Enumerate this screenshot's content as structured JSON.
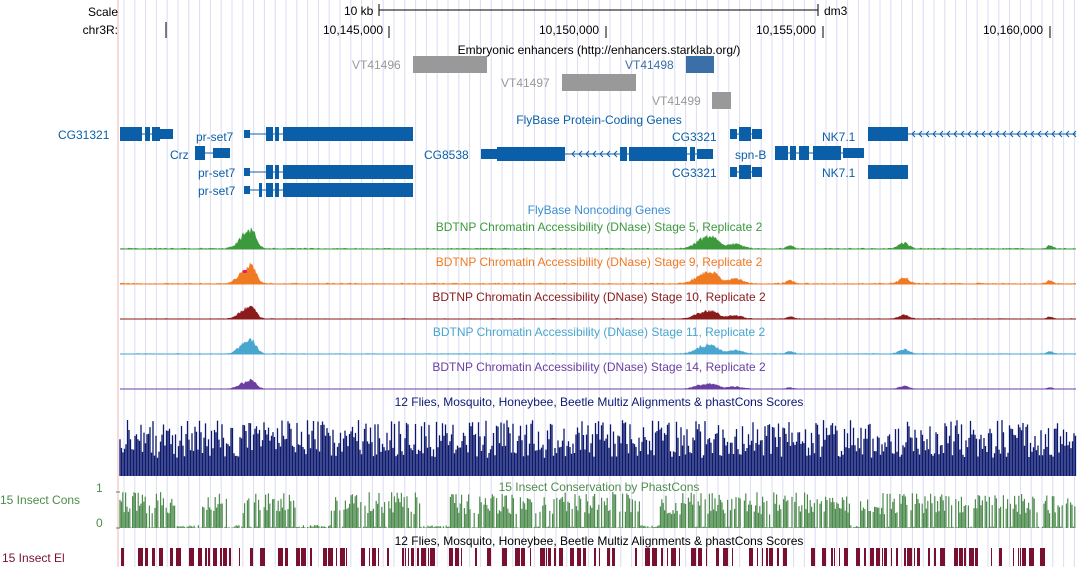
{
  "browser": {
    "scale_label": "Scale",
    "chrom_label": "chr3R:",
    "scale_bar_label": "10 kb",
    "assembly": "dm3",
    "ticks": [
      "10,145,000",
      "10,150,000",
      "10,155,000",
      "10,160,000"
    ]
  },
  "colors": {
    "gene": "#0b5fa8",
    "enhancer_gray": "#999999",
    "enhancer_blue": "#3a6fa8",
    "stage5": "#3c9a3c",
    "stage9": "#f07a22",
    "stage10": "#8b1a1a",
    "stage11": "#48a6cf",
    "stage14": "#6a3fa0",
    "multiz": "#0d1a6e",
    "cons": "#4e8c4e",
    "elements": "#7a1030",
    "grid": "#dcdcf2",
    "side_line": "#f3b6b6"
  },
  "tracks": {
    "enhancers": {
      "title": "Embryonic enhancers (http://enhancers.starklab.org/)",
      "items": [
        "VT41496",
        "VT41497",
        "VT41498",
        "VT41499"
      ]
    },
    "protein_coding": {
      "title": "FlyBase Protein-Coding Genes",
      "genes": [
        "CG31321",
        "Crz",
        "pr-set7",
        "pr-set7",
        "pr-set7",
        "CG8538",
        "CG3321",
        "CG3321",
        "spn-B",
        "NK7.1",
        "NK7.1"
      ]
    },
    "noncoding": {
      "title": "FlyBase Noncoding Genes"
    },
    "dnase": [
      {
        "title": "BDTNP Chromatin Accessibility (DNase) Stage 5, Replicate 2"
      },
      {
        "title": "BDTNP Chromatin Accessibility (DNase) Stage 9, Replicate 2"
      },
      {
        "title": "BDTNP Chromatin Accessibility (DNase) Stage 10, Replicate 2"
      },
      {
        "title": "BDTNP Chromatin Accessibility (DNase) Stage 11, Replicate 2"
      },
      {
        "title": "BDTNP Chromatin Accessibility (DNase) Stage 14, Replicate 2"
      }
    ],
    "multiz": {
      "title": "12 Flies, Mosquito, Honeybee, Beetle Multiz Alignments & phastCons Scores"
    },
    "cons": {
      "title": "15 Insect Conservation by PhastCons",
      "side_label": "15 Insect Cons",
      "ymax": "1",
      "ymin": "0"
    },
    "elements": {
      "title": "12 Flies, Mosquito, Honeybee, Beetle Multiz Alignments & phastCons Scores",
      "side_label": "15 Insect El"
    }
  }
}
